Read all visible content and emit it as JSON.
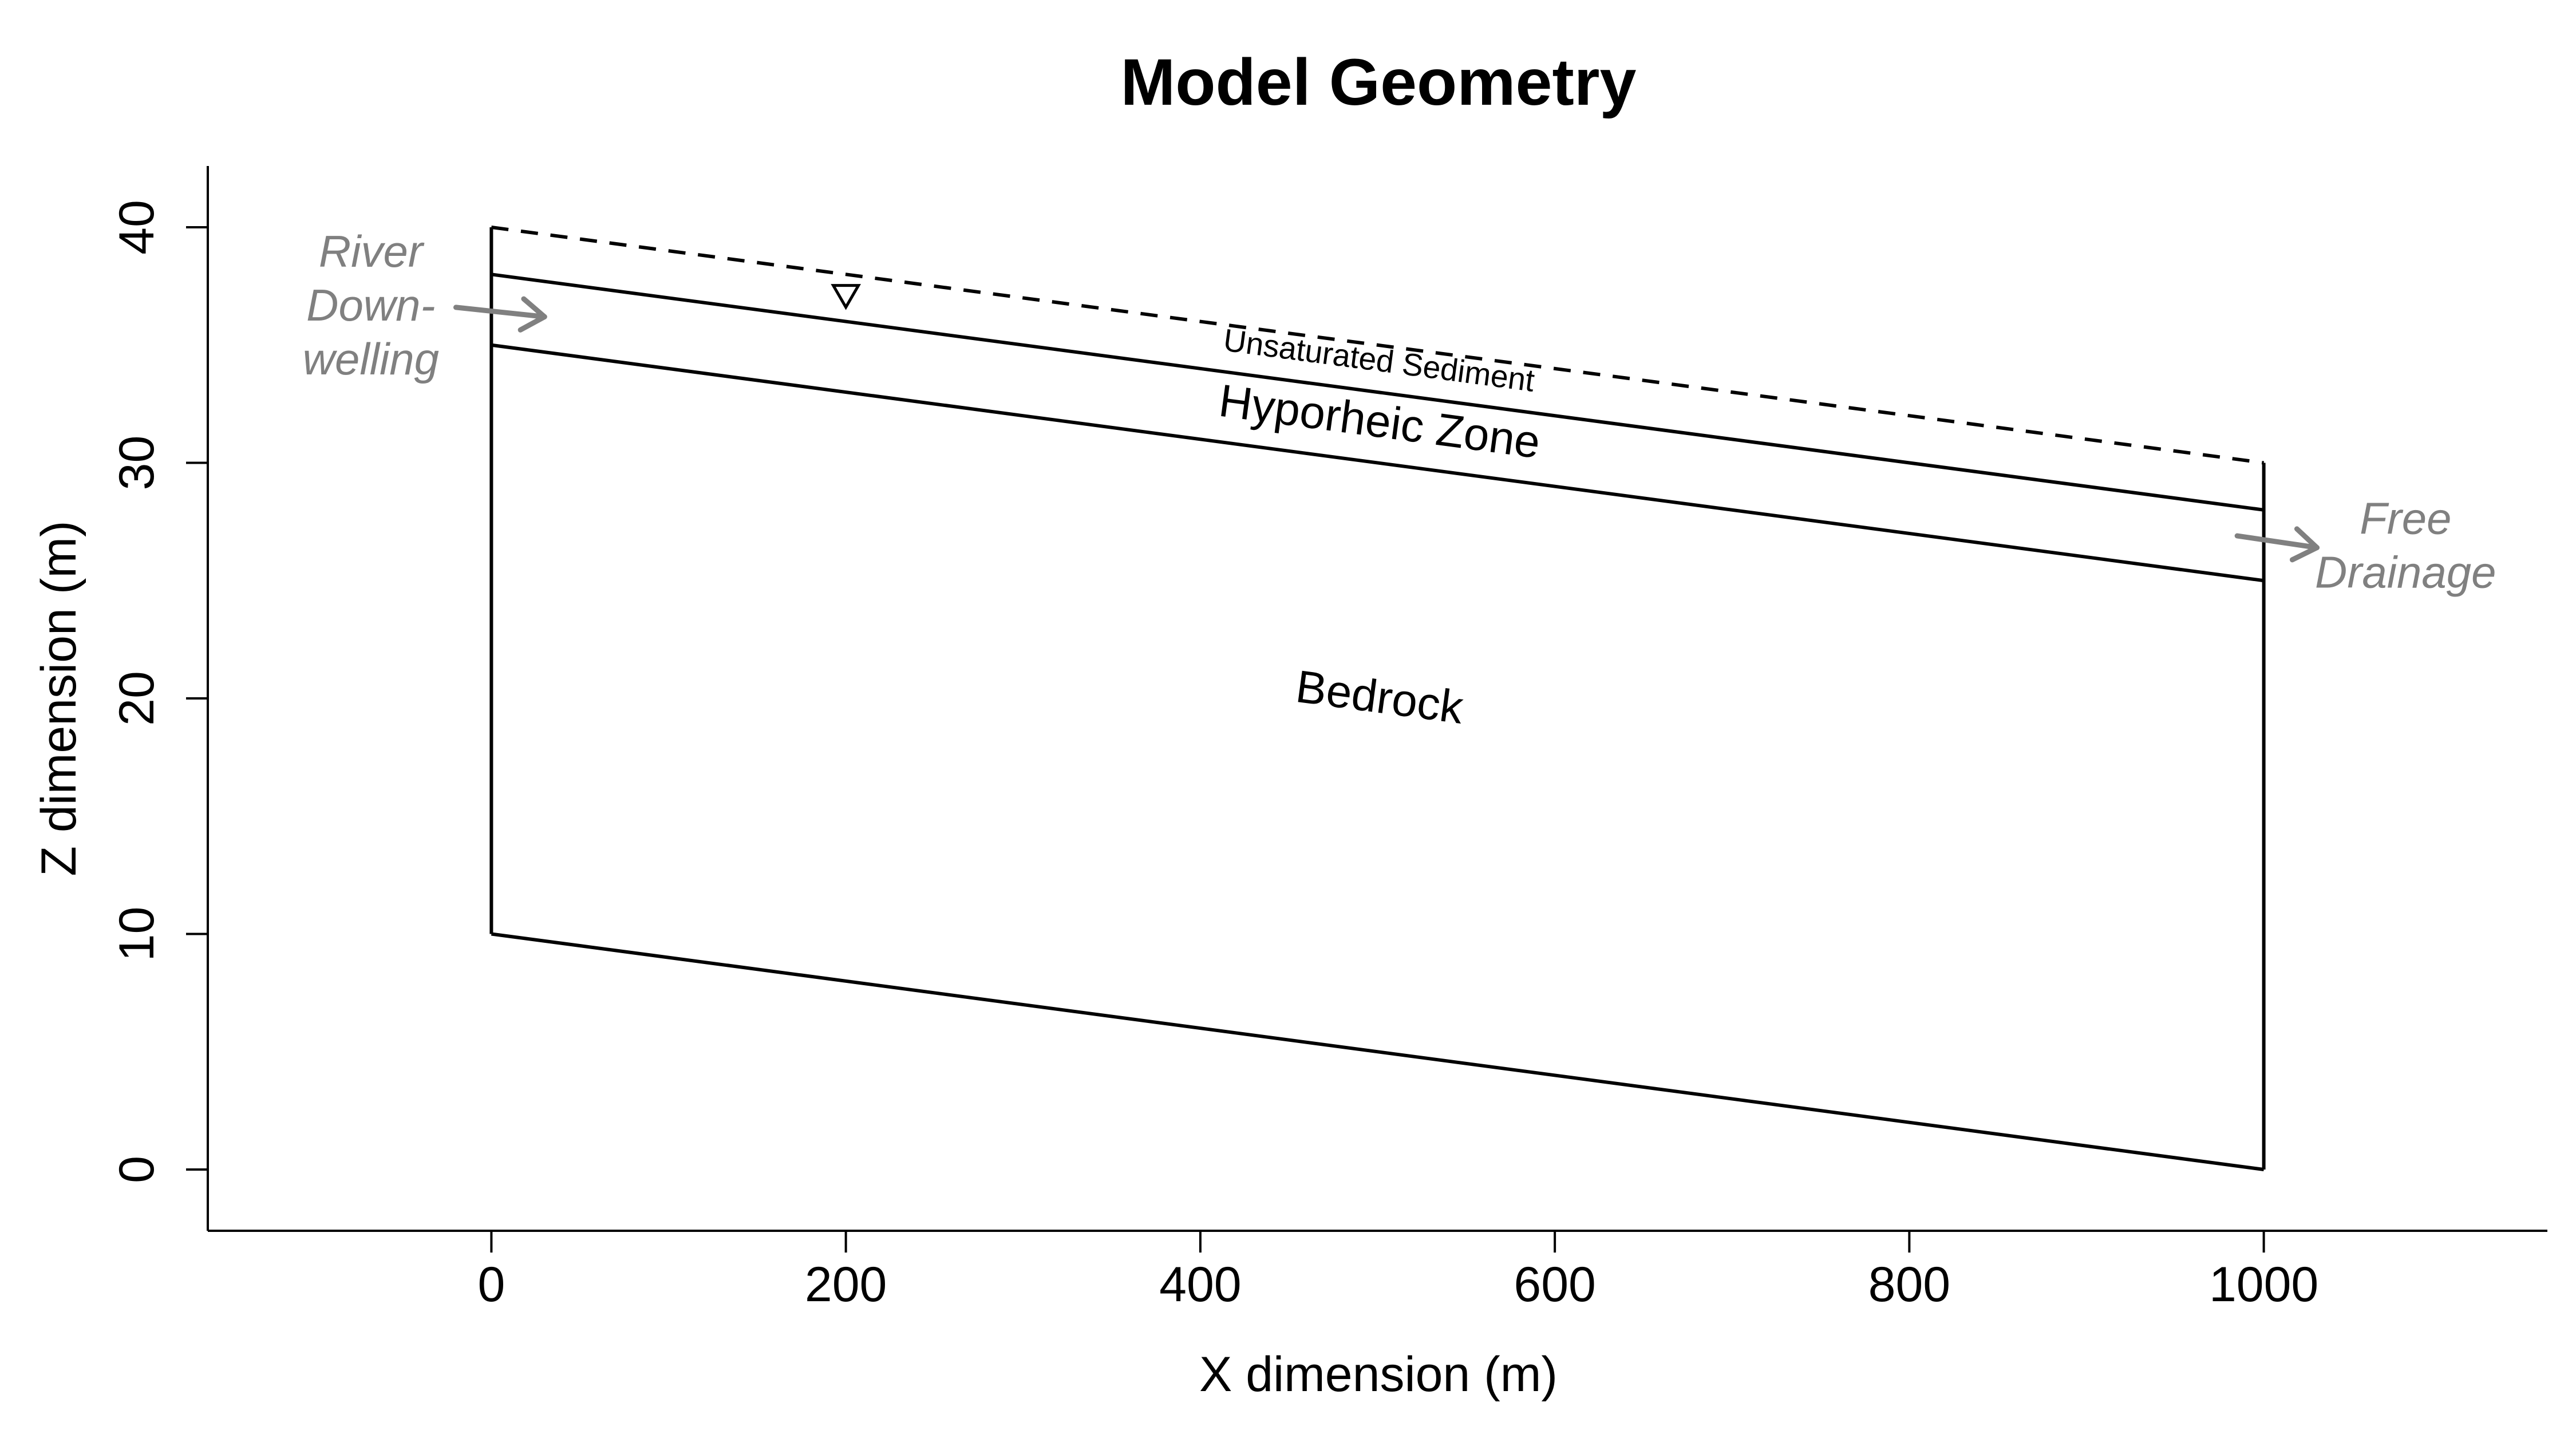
{
  "chart_data": {
    "type": "diagram",
    "title": "Model Geometry",
    "xlabel": "X dimension (m)",
    "ylabel": "Z dimension (m)",
    "xlim": [
      -160,
      1160
    ],
    "ylim": [
      -2.6,
      42.6
    ],
    "x_ticks": [
      0,
      200,
      400,
      600,
      800,
      1000
    ],
    "y_ticks": [
      0,
      10,
      20,
      30,
      40
    ],
    "surfaces": {
      "ground_surface": {
        "x": [
          0,
          1000
        ],
        "z": [
          40,
          30
        ],
        "style": "dashed"
      },
      "water_table": {
        "x": [
          0,
          1000
        ],
        "z": [
          38,
          28
        ],
        "style": "solid"
      },
      "hyporheic_bottom": {
        "x": [
          0,
          1000
        ],
        "z": [
          35,
          25
        ],
        "style": "solid"
      },
      "bedrock_bottom": {
        "x": [
          0,
          1000
        ],
        "z": [
          10,
          0
        ],
        "style": "solid"
      },
      "left_boundary": {
        "x": [
          0,
          0
        ],
        "z": [
          10,
          40
        ],
        "style": "solid"
      },
      "right_boundary": {
        "x": [
          1000,
          1000
        ],
        "z": [
          0,
          30
        ],
        "style": "solid"
      }
    },
    "water_table_symbol": {
      "x": 200,
      "z": 36.8
    },
    "regions": [
      {
        "id": "unsaturated",
        "label": "Unsaturated Sediment",
        "x": 500,
        "z": 33.9
      },
      {
        "id": "hyporheic",
        "label": "Hyporheic Zone",
        "x": 500,
        "z": 31.1
      },
      {
        "id": "bedrock",
        "label": "Bedrock",
        "x": 500,
        "z": 19.4
      }
    ],
    "annotations": [
      {
        "id": "river-downwelling",
        "lines": [
          "River",
          "Down-",
          "welling"
        ],
        "text_x": -68,
        "text_z": 36.7,
        "arrow": {
          "x1": -20,
          "z1": 36.6,
          "x2": 30,
          "z2": 36.2
        }
      },
      {
        "id": "free-drainage",
        "lines": [
          "Free",
          "Drainage"
        ],
        "text_x": 1080,
        "text_z": 26.5,
        "arrow": {
          "x1": 985,
          "z1": 26.9,
          "x2": 1030,
          "z2": 26.4
        }
      }
    ]
  }
}
